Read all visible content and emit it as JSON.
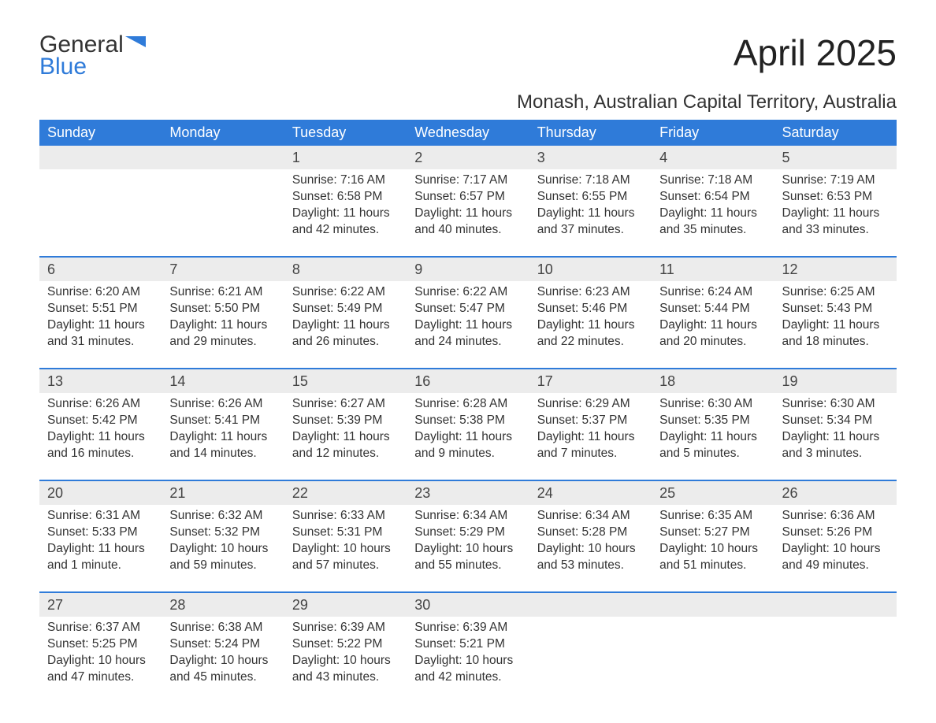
{
  "logo": {
    "line1": "General",
    "line2": "Blue"
  },
  "title": "April 2025",
  "subtitle": "Monash, Australian Capital Territory, Australia",
  "colors": {
    "header_bg": "#2f7bd9",
    "header_fg": "#ffffff",
    "daynum_bg": "#ececec",
    "row_separator": "#2f7bd9",
    "page_bg": "#ffffff",
    "text": "#333333"
  },
  "typography": {
    "title_fontsize": 46,
    "subtitle_fontsize": 24,
    "header_fontsize": 18,
    "body_fontsize": 15.5,
    "font_family": "Arial"
  },
  "day_headers": [
    "Sunday",
    "Monday",
    "Tuesday",
    "Wednesday",
    "Thursday",
    "Friday",
    "Saturday"
  ],
  "weeks": [
    [
      null,
      null,
      {
        "n": "1",
        "sunrise": "Sunrise: 7:16 AM",
        "sunset": "Sunset: 6:58 PM",
        "daylight": "Daylight: 11 hours and 42 minutes."
      },
      {
        "n": "2",
        "sunrise": "Sunrise: 7:17 AM",
        "sunset": "Sunset: 6:57 PM",
        "daylight": "Daylight: 11 hours and 40 minutes."
      },
      {
        "n": "3",
        "sunrise": "Sunrise: 7:18 AM",
        "sunset": "Sunset: 6:55 PM",
        "daylight": "Daylight: 11 hours and 37 minutes."
      },
      {
        "n": "4",
        "sunrise": "Sunrise: 7:18 AM",
        "sunset": "Sunset: 6:54 PM",
        "daylight": "Daylight: 11 hours and 35 minutes."
      },
      {
        "n": "5",
        "sunrise": "Sunrise: 7:19 AM",
        "sunset": "Sunset: 6:53 PM",
        "daylight": "Daylight: 11 hours and 33 minutes."
      }
    ],
    [
      {
        "n": "6",
        "sunrise": "Sunrise: 6:20 AM",
        "sunset": "Sunset: 5:51 PM",
        "daylight": "Daylight: 11 hours and 31 minutes."
      },
      {
        "n": "7",
        "sunrise": "Sunrise: 6:21 AM",
        "sunset": "Sunset: 5:50 PM",
        "daylight": "Daylight: 11 hours and 29 minutes."
      },
      {
        "n": "8",
        "sunrise": "Sunrise: 6:22 AM",
        "sunset": "Sunset: 5:49 PM",
        "daylight": "Daylight: 11 hours and 26 minutes."
      },
      {
        "n": "9",
        "sunrise": "Sunrise: 6:22 AM",
        "sunset": "Sunset: 5:47 PM",
        "daylight": "Daylight: 11 hours and 24 minutes."
      },
      {
        "n": "10",
        "sunrise": "Sunrise: 6:23 AM",
        "sunset": "Sunset: 5:46 PM",
        "daylight": "Daylight: 11 hours and 22 minutes."
      },
      {
        "n": "11",
        "sunrise": "Sunrise: 6:24 AM",
        "sunset": "Sunset: 5:44 PM",
        "daylight": "Daylight: 11 hours and 20 minutes."
      },
      {
        "n": "12",
        "sunrise": "Sunrise: 6:25 AM",
        "sunset": "Sunset: 5:43 PM",
        "daylight": "Daylight: 11 hours and 18 minutes."
      }
    ],
    [
      {
        "n": "13",
        "sunrise": "Sunrise: 6:26 AM",
        "sunset": "Sunset: 5:42 PM",
        "daylight": "Daylight: 11 hours and 16 minutes."
      },
      {
        "n": "14",
        "sunrise": "Sunrise: 6:26 AM",
        "sunset": "Sunset: 5:41 PM",
        "daylight": "Daylight: 11 hours and 14 minutes."
      },
      {
        "n": "15",
        "sunrise": "Sunrise: 6:27 AM",
        "sunset": "Sunset: 5:39 PM",
        "daylight": "Daylight: 11 hours and 12 minutes."
      },
      {
        "n": "16",
        "sunrise": "Sunrise: 6:28 AM",
        "sunset": "Sunset: 5:38 PM",
        "daylight": "Daylight: 11 hours and 9 minutes."
      },
      {
        "n": "17",
        "sunrise": "Sunrise: 6:29 AM",
        "sunset": "Sunset: 5:37 PM",
        "daylight": "Daylight: 11 hours and 7 minutes."
      },
      {
        "n": "18",
        "sunrise": "Sunrise: 6:30 AM",
        "sunset": "Sunset: 5:35 PM",
        "daylight": "Daylight: 11 hours and 5 minutes."
      },
      {
        "n": "19",
        "sunrise": "Sunrise: 6:30 AM",
        "sunset": "Sunset: 5:34 PM",
        "daylight": "Daylight: 11 hours and 3 minutes."
      }
    ],
    [
      {
        "n": "20",
        "sunrise": "Sunrise: 6:31 AM",
        "sunset": "Sunset: 5:33 PM",
        "daylight": "Daylight: 11 hours and 1 minute."
      },
      {
        "n": "21",
        "sunrise": "Sunrise: 6:32 AM",
        "sunset": "Sunset: 5:32 PM",
        "daylight": "Daylight: 10 hours and 59 minutes."
      },
      {
        "n": "22",
        "sunrise": "Sunrise: 6:33 AM",
        "sunset": "Sunset: 5:31 PM",
        "daylight": "Daylight: 10 hours and 57 minutes."
      },
      {
        "n": "23",
        "sunrise": "Sunrise: 6:34 AM",
        "sunset": "Sunset: 5:29 PM",
        "daylight": "Daylight: 10 hours and 55 minutes."
      },
      {
        "n": "24",
        "sunrise": "Sunrise: 6:34 AM",
        "sunset": "Sunset: 5:28 PM",
        "daylight": "Daylight: 10 hours and 53 minutes."
      },
      {
        "n": "25",
        "sunrise": "Sunrise: 6:35 AM",
        "sunset": "Sunset: 5:27 PM",
        "daylight": "Daylight: 10 hours and 51 minutes."
      },
      {
        "n": "26",
        "sunrise": "Sunrise: 6:36 AM",
        "sunset": "Sunset: 5:26 PM",
        "daylight": "Daylight: 10 hours and 49 minutes."
      }
    ],
    [
      {
        "n": "27",
        "sunrise": "Sunrise: 6:37 AM",
        "sunset": "Sunset: 5:25 PM",
        "daylight": "Daylight: 10 hours and 47 minutes."
      },
      {
        "n": "28",
        "sunrise": "Sunrise: 6:38 AM",
        "sunset": "Sunset: 5:24 PM",
        "daylight": "Daylight: 10 hours and 45 minutes."
      },
      {
        "n": "29",
        "sunrise": "Sunrise: 6:39 AM",
        "sunset": "Sunset: 5:22 PM",
        "daylight": "Daylight: 10 hours and 43 minutes."
      },
      {
        "n": "30",
        "sunrise": "Sunrise: 6:39 AM",
        "sunset": "Sunset: 5:21 PM",
        "daylight": "Daylight: 10 hours and 42 minutes."
      },
      null,
      null,
      null
    ]
  ]
}
